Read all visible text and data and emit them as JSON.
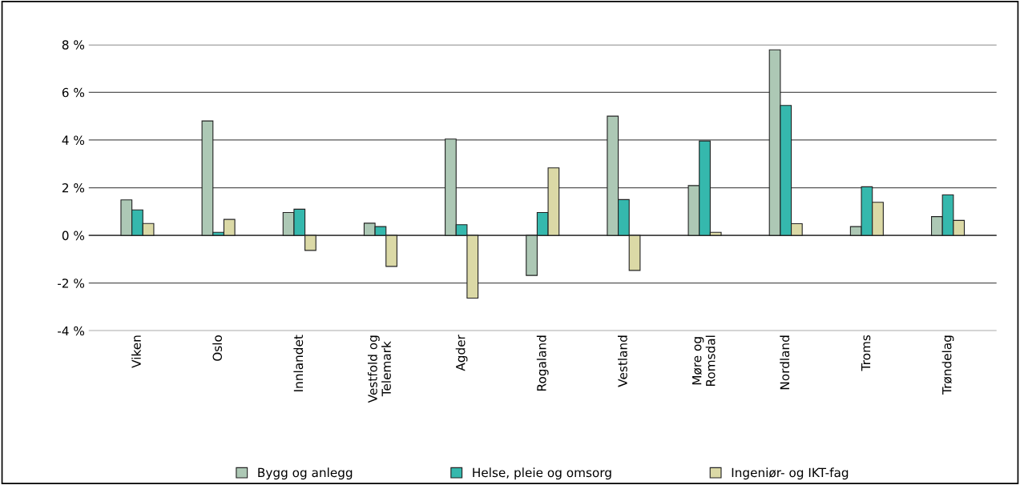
{
  "chart_data": {
    "type": "bar",
    "categories": [
      "Viken",
      "Oslo",
      "Innlandet",
      "Vestfold og\nTelemark",
      "Agder",
      "Rogaland",
      "Vestland",
      "Møre og\nRomsdal",
      "Nordland",
      "Troms",
      "Trøndelag"
    ],
    "series": [
      {
        "name": "Bygg og anlegg",
        "color": "#adc8b5",
        "values": [
          1.49,
          4.8,
          0.96,
          0.51,
          4.04,
          -1.68,
          5.0,
          2.09,
          7.78,
          0.37,
          0.79
        ]
      },
      {
        "name": "Helse, pleie og omsorg",
        "color": "#35b8ad",
        "values": [
          1.07,
          0.13,
          1.1,
          0.37,
          0.45,
          0.96,
          1.5,
          3.96,
          5.45,
          2.04,
          1.7
        ]
      },
      {
        "name": "Ingeniør- og IKT-fag",
        "color": "#dbd9a6",
        "values": [
          0.5,
          0.67,
          -0.63,
          -1.3,
          -2.63,
          2.83,
          -1.47,
          0.13,
          0.49,
          1.39,
          0.63
        ]
      }
    ],
    "ylim": [
      -4,
      8
    ],
    "yticks": [
      {
        "value": -4,
        "label": "-4 %"
      },
      {
        "value": -2,
        "label": "-2 %"
      },
      {
        "value": 0,
        "label": "0 %"
      },
      {
        "value": 2,
        "label": "2 %"
      },
      {
        "value": 4,
        "label": "4 %"
      },
      {
        "value": 6,
        "label": "6 %"
      },
      {
        "value": 8,
        "label": "8 %"
      }
    ],
    "grid": "y",
    "legend": "bottom"
  }
}
